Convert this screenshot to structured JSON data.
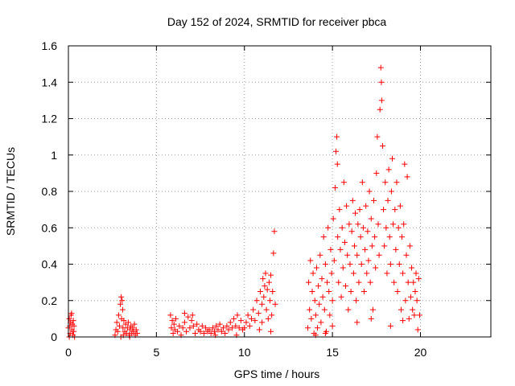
{
  "chart_data": {
    "type": "scatter",
    "title": "Day 152 of 2024, SRMTID for receiver pbca",
    "xlabel": "GPS time / hours",
    "ylabel": "SRMTID / TECUs",
    "xlim": [
      0,
      24
    ],
    "ylim": [
      0,
      1.6
    ],
    "xticks": [
      0,
      5,
      10,
      15,
      20
    ],
    "xtick_labels": [
      "0",
      "5",
      "10",
      "15",
      "20"
    ],
    "yticks": [
      0,
      0.2,
      0.4,
      0.6,
      0.8,
      1.0,
      1.2,
      1.4,
      1.6
    ],
    "ytick_labels": [
      "0",
      "0.2",
      "0.4",
      "0.6",
      "0.8",
      "1",
      "1.2",
      "1.4",
      "1.6"
    ],
    "grid": true,
    "marker": "+",
    "color": "#ff0000",
    "series": [
      {
        "name": "pbca",
        "points": [
          [
            0.0,
            0.05
          ],
          [
            0.05,
            0.1
          ],
          [
            0.1,
            0.02
          ],
          [
            0.12,
            0.08
          ],
          [
            0.15,
            0.12
          ],
          [
            0.2,
            0.04
          ],
          [
            0.22,
            0.07
          ],
          [
            0.25,
            0.01
          ],
          [
            0.28,
            0.09
          ],
          [
            0.3,
            0.03
          ],
          [
            0.32,
            0.06
          ],
          [
            0.35,
            0.0
          ],
          [
            0.05,
            0.0
          ],
          [
            0.18,
            0.13
          ],
          [
            0.08,
            0.06
          ],
          [
            2.65,
            0.01
          ],
          [
            2.7,
            0.04
          ],
          [
            2.75,
            0.08
          ],
          [
            2.8,
            0.03
          ],
          [
            2.85,
            0.12
          ],
          [
            2.9,
            0.06
          ],
          [
            2.95,
            0.18
          ],
          [
            3.0,
            0.22
          ],
          [
            3.02,
            0.1
          ],
          [
            3.05,
            0.2
          ],
          [
            3.08,
            0.15
          ],
          [
            3.1,
            0.05
          ],
          [
            3.15,
            0.09
          ],
          [
            3.2,
            0.03
          ],
          [
            3.25,
            0.07
          ],
          [
            3.3,
            0.02
          ],
          [
            3.35,
            0.05
          ],
          [
            3.4,
            0.08
          ],
          [
            3.45,
            0.01
          ],
          [
            3.5,
            0.04
          ],
          [
            3.55,
            0.06
          ],
          [
            3.6,
            0.02
          ],
          [
            3.65,
            0.05
          ],
          [
            3.7,
            0.03
          ],
          [
            3.75,
            0.07
          ],
          [
            3.8,
            0.01
          ],
          [
            3.85,
            0.04
          ],
          [
            3.9,
            0.02
          ],
          [
            2.98,
            0.0
          ],
          [
            3.12,
            0.01
          ],
          [
            3.48,
            0.0
          ],
          [
            5.8,
            0.12
          ],
          [
            5.85,
            0.05
          ],
          [
            5.9,
            0.09
          ],
          [
            5.95,
            0.02
          ],
          [
            6.0,
            0.07
          ],
          [
            6.05,
            0.04
          ],
          [
            6.1,
            0.1
          ],
          [
            6.2,
            0.03
          ],
          [
            6.3,
            0.06
          ],
          [
            6.4,
            0.01
          ],
          [
            6.5,
            0.05
          ],
          [
            6.6,
            0.08
          ],
          [
            6.7,
            0.03
          ],
          [
            6.8,
            0.11
          ],
          [
            6.9,
            0.05
          ],
          [
            7.0,
            0.09
          ],
          [
            7.1,
            0.06
          ],
          [
            7.2,
            0.02
          ],
          [
            7.3,
            0.07
          ],
          [
            7.4,
            0.04
          ],
          [
            7.5,
            0.03
          ],
          [
            7.6,
            0.06
          ],
          [
            7.7,
            0.02
          ],
          [
            7.8,
            0.05
          ],
          [
            7.9,
            0.03
          ],
          [
            8.0,
            0.04
          ],
          [
            8.1,
            0.02
          ],
          [
            8.2,
            0.05
          ],
          [
            8.3,
            0.03
          ],
          [
            8.4,
            0.06
          ],
          [
            8.5,
            0.04
          ],
          [
            8.6,
            0.07
          ],
          [
            8.7,
            0.03
          ],
          [
            8.8,
            0.05
          ],
          [
            8.9,
            0.02
          ],
          [
            9.0,
            0.06
          ],
          [
            9.1,
            0.04
          ],
          [
            9.2,
            0.08
          ],
          [
            9.3,
            0.05
          ],
          [
            9.4,
            0.1
          ],
          [
            9.5,
            0.06
          ],
          [
            9.6,
            0.12
          ],
          [
            9.7,
            0.05
          ],
          [
            9.8,
            0.09
          ],
          [
            9.9,
            0.04
          ],
          [
            6.6,
            0.13
          ],
          [
            7.05,
            0.12
          ],
          [
            8.35,
            0.01
          ],
          [
            9.55,
            0.01
          ],
          [
            10.0,
            0.05
          ],
          [
            10.1,
            0.08
          ],
          [
            10.2,
            0.12
          ],
          [
            10.3,
            0.06
          ],
          [
            10.4,
            0.1
          ],
          [
            10.5,
            0.15
          ],
          [
            10.6,
            0.09
          ],
          [
            10.7,
            0.2
          ],
          [
            10.8,
            0.13
          ],
          [
            10.9,
            0.25
          ],
          [
            11.0,
            0.18
          ],
          [
            11.05,
            0.32
          ],
          [
            11.1,
            0.22
          ],
          [
            11.15,
            0.28
          ],
          [
            11.2,
            0.35
          ],
          [
            11.25,
            0.15
          ],
          [
            11.3,
            0.26
          ],
          [
            11.35,
            0.1
          ],
          [
            11.4,
            0.3
          ],
          [
            11.45,
            0.2
          ],
          [
            11.5,
            0.34
          ],
          [
            11.55,
            0.12
          ],
          [
            11.6,
            0.25
          ],
          [
            11.65,
            0.46
          ],
          [
            11.7,
            0.58
          ],
          [
            11.75,
            0.18
          ],
          [
            11.0,
            0.08
          ],
          [
            10.85,
            0.04
          ],
          [
            11.5,
            0.03
          ],
          [
            13.6,
            0.05
          ],
          [
            13.65,
            0.3
          ],
          [
            13.7,
            0.15
          ],
          [
            13.75,
            0.42
          ],
          [
            13.8,
            0.1
          ],
          [
            13.85,
            0.25
          ],
          [
            13.9,
            0.35
          ],
          [
            13.95,
            0.02
          ],
          [
            14.0,
            0.2
          ],
          [
            14.05,
            0.12
          ],
          [
            14.1,
            0.38
          ],
          [
            14.15,
            0.05
          ],
          [
            14.2,
            0.28
          ],
          [
            14.25,
            0.18
          ],
          [
            14.3,
            0.45
          ],
          [
            14.35,
            0.08
          ],
          [
            14.4,
            0.32
          ],
          [
            14.45,
            0.22
          ],
          [
            14.5,
            0.55
          ],
          [
            14.55,
            0.15
          ],
          [
            14.6,
            0.4
          ],
          [
            14.65,
            0.03
          ],
          [
            14.7,
            0.3
          ],
          [
            14.75,
            0.6
          ],
          [
            14.8,
            0.25
          ],
          [
            14.85,
            0.12
          ],
          [
            14.9,
            0.48
          ],
          [
            14.95,
            0.35
          ],
          [
            15.0,
            0.2
          ],
          [
            15.05,
            0.65
          ],
          [
            15.1,
            0.42
          ],
          [
            15.15,
            0.82
          ],
          [
            15.2,
            1.02
          ],
          [
            15.25,
            1.1
          ],
          [
            15.28,
            0.95
          ],
          [
            15.3,
            0.55
          ],
          [
            15.35,
            0.3
          ],
          [
            15.4,
            0.7
          ],
          [
            15.45,
            0.48
          ],
          [
            15.5,
            0.22
          ],
          [
            15.55,
            0.6
          ],
          [
            15.6,
            0.38
          ],
          [
            15.65,
            0.85
          ],
          [
            15.7,
            0.52
          ],
          [
            15.75,
            0.28
          ],
          [
            15.8,
            0.72
          ],
          [
            15.85,
            0.45
          ],
          [
            15.9,
            0.15
          ],
          [
            15.95,
            0.62
          ],
          [
            16.0,
            0.4
          ],
          [
            16.05,
            0.25
          ],
          [
            16.1,
            0.58
          ],
          [
            16.15,
            0.75
          ],
          [
            16.2,
            0.35
          ],
          [
            16.25,
            0.5
          ],
          [
            16.3,
            0.68
          ],
          [
            16.35,
            0.2
          ],
          [
            16.4,
            0.45
          ],
          [
            16.45,
            0.62
          ],
          [
            16.5,
            0.3
          ],
          [
            16.55,
            0.7
          ],
          [
            16.6,
            0.55
          ],
          [
            16.65,
            0.4
          ],
          [
            16.7,
            0.85
          ],
          [
            16.75,
            0.6
          ],
          [
            16.8,
            0.25
          ],
          [
            16.85,
            0.48
          ],
          [
            16.9,
            0.72
          ],
          [
            16.95,
            0.35
          ],
          [
            17.0,
            0.58
          ],
          [
            17.05,
            0.42
          ],
          [
            17.1,
            0.8
          ],
          [
            17.15,
            0.3
          ],
          [
            17.2,
            0.65
          ],
          [
            17.25,
            0.5
          ],
          [
            17.3,
            0.15
          ],
          [
            17.35,
            0.75
          ],
          [
            17.4,
            0.55
          ],
          [
            17.45,
            0.38
          ],
          [
            17.5,
            0.9
          ],
          [
            17.55,
            1.1
          ],
          [
            17.6,
            0.62
          ],
          [
            17.65,
            0.45
          ],
          [
            17.7,
            1.25
          ],
          [
            17.75,
            1.48
          ],
          [
            17.78,
            1.4
          ],
          [
            17.8,
            1.3
          ],
          [
            17.85,
            1.05
          ],
          [
            17.9,
            0.7
          ],
          [
            17.95,
            0.5
          ],
          [
            18.0,
            0.85
          ],
          [
            18.05,
            0.6
          ],
          [
            18.1,
            0.35
          ],
          [
            18.15,
            0.75
          ],
          [
            18.2,
            0.92
          ],
          [
            18.25,
            0.55
          ],
          [
            18.3,
            0.4
          ],
          [
            18.35,
            0.8
          ],
          [
            18.4,
            0.98
          ],
          [
            18.45,
            0.62
          ],
          [
            18.5,
            0.3
          ],
          [
            18.55,
            0.7
          ],
          [
            18.6,
            0.48
          ],
          [
            18.65,
            0.85
          ],
          [
            18.7,
            0.25
          ],
          [
            18.75,
            0.6
          ],
          [
            18.8,
            0.4
          ],
          [
            18.85,
            0.72
          ],
          [
            18.9,
            0.15
          ],
          [
            18.95,
            0.55
          ],
          [
            19.0,
            0.35
          ],
          [
            19.05,
            0.62
          ],
          [
            19.1,
            0.95
          ],
          [
            19.15,
            0.2
          ],
          [
            19.2,
            0.45
          ],
          [
            19.25,
            0.88
          ],
          [
            19.3,
            0.3
          ],
          [
            19.35,
            0.1
          ],
          [
            19.4,
            0.5
          ],
          [
            19.45,
            0.22
          ],
          [
            19.5,
            0.38
          ],
          [
            19.55,
            0.15
          ],
          [
            19.6,
            0.3
          ],
          [
            19.65,
            0.12
          ],
          [
            19.7,
            0.25
          ],
          [
            19.75,
            0.35
          ],
          [
            19.8,
            0.2
          ],
          [
            19.85,
            0.04
          ],
          [
            19.9,
            0.32
          ],
          [
            19.95,
            0.12
          ],
          [
            14.05,
            0.01
          ],
          [
            14.6,
            0.02
          ],
          [
            15.0,
            0.06
          ],
          [
            16.4,
            0.08
          ],
          [
            17.2,
            0.1
          ],
          [
            18.3,
            0.06
          ],
          [
            19.0,
            0.09
          ]
        ]
      }
    ]
  }
}
